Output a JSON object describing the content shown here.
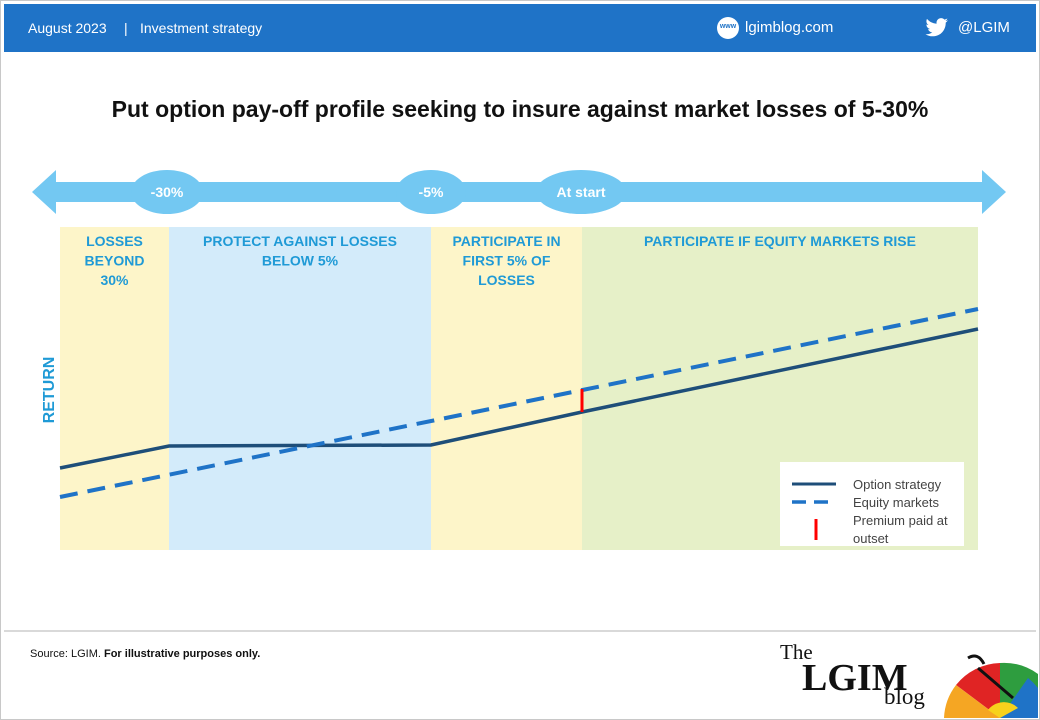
{
  "header": {
    "date": "August 2023",
    "separator": "|",
    "category": "Investment strategy",
    "website": "lgimblog.com",
    "website_badge": "www",
    "twitter": "@LGIM",
    "web_icon": "globe-icon",
    "twitter_icon": "twitter-bird-icon",
    "background_color": "#1f73c7"
  },
  "chart_data": {
    "type": "line",
    "title": "Put option pay-off profile seeking to insure against market losses of 5-30%",
    "ylabel": "RETURN",
    "timeline_markers": [
      "-30%",
      "-5%",
      "At start"
    ],
    "zones": [
      {
        "label": "LOSSES BEYOND 30%",
        "color": "#fdf5c9"
      },
      {
        "label": "PROTECT AGAINST LOSSES BELOW 5%",
        "color": "#d3ebfa"
      },
      {
        "label": "PARTICIPATE IN FIRST 5% OF LOSSES",
        "color": "#fdf5c9"
      },
      {
        "label": "PARTICIPATE IF EQUITY MARKETS RISE",
        "color": "#e6f0c8"
      }
    ],
    "series": [
      {
        "name": "Option strategy",
        "style": "solid",
        "color": "#1e4e79"
      },
      {
        "name": "Equity markets",
        "style": "dashed",
        "color": "#1f73c7"
      },
      {
        "name": "Premium paid at outset",
        "style": "marker",
        "color": "#ff0000"
      }
    ],
    "legend_position": "bottom-right",
    "grid": false,
    "axis_color": "#1f9ad6",
    "arrow_color": "#73c8f2"
  },
  "footer": {
    "source_prefix": "Source: LGIM.",
    "source_note": "For illustrative purposes only.",
    "logo_the": "The",
    "logo_lgim": "LGIM",
    "logo_blog": "blog"
  }
}
